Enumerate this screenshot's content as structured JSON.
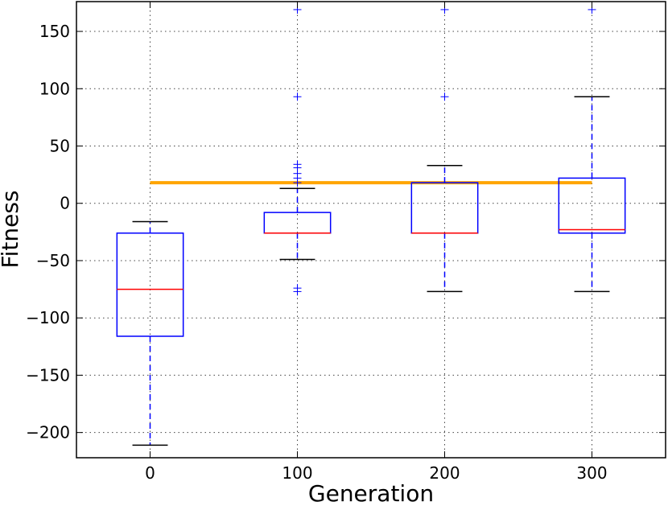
{
  "chart_data": {
    "type": "boxplot",
    "title": "",
    "xlabel": "Generation",
    "ylabel": "Fitness",
    "grid": true,
    "ylim": [
      -222,
      176
    ],
    "xlim": [
      -0.5,
      3.5
    ],
    "yticks": [
      150,
      100,
      50,
      0,
      -50,
      -100,
      -150,
      -200
    ],
    "ytick_labels": [
      "150",
      "100",
      "50",
      "0",
      "−50",
      "−100",
      "−150",
      "−200"
    ],
    "categories": [
      "0",
      "100",
      "200",
      "300"
    ],
    "boxes": [
      {
        "label": "0",
        "whisker_low": -211,
        "q1": -116,
        "median": -75,
        "q3": -26,
        "whisker_high": -16,
        "outliers": []
      },
      {
        "label": "100",
        "whisker_low": -49,
        "q1": -26,
        "median": -26,
        "q3": -8,
        "whisker_high": 13,
        "outliers": [
          18,
          22,
          26,
          31,
          34,
          93,
          169,
          -74,
          -77
        ]
      },
      {
        "label": "200",
        "whisker_low": -77,
        "q1": -26,
        "median": -26,
        "q3": 18,
        "whisker_high": 33,
        "outliers": [
          93,
          169
        ]
      },
      {
        "label": "300",
        "whisker_low": -77,
        "q1": -26,
        "median": -23,
        "q3": 22,
        "whisker_high": 93,
        "outliers": [
          169
        ]
      }
    ],
    "reference_line": {
      "value": 18,
      "x_start": 0,
      "x_end": 3,
      "color": "#ffa500"
    },
    "colors": {
      "box": "#0000ff",
      "median": "#ff0000",
      "whisker": "#0000ff",
      "cap": "#000000",
      "outlier": "#0000ff",
      "grid": "#444444"
    }
  }
}
